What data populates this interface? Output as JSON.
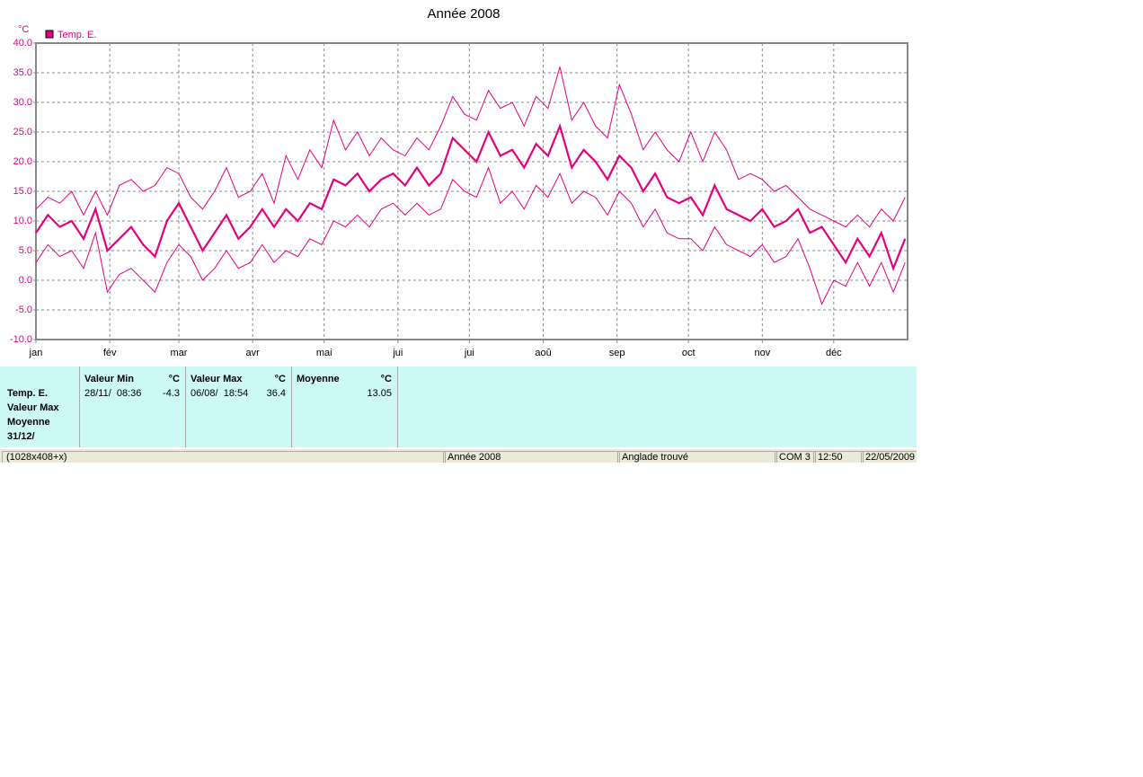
{
  "chart_data": {
    "type": "line",
    "title": "Année 2008",
    "y_label": "°C",
    "legend": "Temp. E.",
    "color": "#e6007e",
    "grid": true,
    "xlim": [
      0,
      366
    ],
    "xticks": [
      {
        "value": 0,
        "label": "jan"
      },
      {
        "value": 31,
        "label": "fév"
      },
      {
        "value": 60,
        "label": "mar"
      },
      {
        "value": 91,
        "label": "avr"
      },
      {
        "value": 121,
        "label": "mai"
      },
      {
        "value": 152,
        "label": "jui"
      },
      {
        "value": 182,
        "label": "jui"
      },
      {
        "value": 213,
        "label": "aoû"
      },
      {
        "value": 244,
        "label": "sep"
      },
      {
        "value": 274,
        "label": "oct"
      },
      {
        "value": 305,
        "label": "nov"
      },
      {
        "value": 335,
        "label": "déc"
      }
    ],
    "ylim": [
      -10,
      40
    ],
    "yticks": [
      {
        "value": -10,
        "label": "-10.0"
      },
      {
        "value": -5,
        "label": "-5.0"
      },
      {
        "value": 0,
        "label": "0.0"
      },
      {
        "value": 5,
        "label": "5.0"
      },
      {
        "value": 10,
        "label": "10.0"
      },
      {
        "value": 15,
        "label": "15.0"
      },
      {
        "value": 20,
        "label": "20.0"
      },
      {
        "value": 25,
        "label": "25.0"
      },
      {
        "value": 30,
        "label": "30.0"
      },
      {
        "value": 35,
        "label": "35.0"
      },
      {
        "value": 40,
        "label": "40.0"
      }
    ],
    "x": [
      0,
      5,
      10,
      15,
      20,
      25,
      30,
      35,
      40,
      45,
      50,
      55,
      60,
      65,
      70,
      75,
      80,
      85,
      90,
      95,
      100,
      105,
      110,
      115,
      120,
      125,
      130,
      135,
      140,
      145,
      150,
      155,
      160,
      165,
      170,
      175,
      180,
      185,
      190,
      195,
      200,
      205,
      210,
      215,
      220,
      225,
      230,
      235,
      240,
      245,
      250,
      255,
      260,
      265,
      270,
      275,
      280,
      285,
      290,
      295,
      300,
      305,
      310,
      315,
      320,
      325,
      330,
      335,
      340,
      345,
      350,
      355,
      360,
      365
    ],
    "series": [
      {
        "color": "#e6007e",
        "values": [
          12,
          14,
          13,
          15,
          11,
          15,
          11,
          16,
          17,
          15,
          16,
          19,
          18,
          14,
          12,
          15,
          19,
          14,
          15,
          18,
          13,
          21,
          17,
          22,
          19,
          27,
          22,
          25,
          21,
          24,
          22,
          21,
          24,
          22,
          26,
          31,
          28,
          27,
          32,
          29,
          30,
          26,
          31,
          29,
          36,
          27,
          30,
          26,
          24,
          33,
          28,
          22,
          25,
          22,
          20,
          25,
          20,
          25,
          22,
          17,
          18,
          17,
          15,
          16,
          14,
          12,
          11,
          10,
          9,
          11,
          9,
          12,
          10,
          14
        ]
      },
      {
        "color": "#e6007e",
        "values": [
          3,
          6,
          4,
          5,
          2,
          8,
          -2,
          1,
          2,
          0,
          -2,
          3,
          6,
          4,
          0,
          2,
          5,
          2,
          3,
          6,
          3,
          5,
          4,
          7,
          6,
          10,
          9,
          11,
          9,
          12,
          13,
          11,
          13,
          11,
          12,
          17,
          15,
          14,
          19,
          13,
          15,
          12,
          16,
          14,
          18,
          13,
          15,
          14,
          11,
          15,
          13,
          9,
          12,
          8,
          7,
          7,
          5,
          9,
          6,
          5,
          4,
          6,
          3,
          4,
          7,
          2,
          -4,
          0,
          -1,
          3,
          -1,
          3,
          -2,
          3
        ]
      },
      {
        "color": "#e6007e",
        "values": [
          8,
          11,
          9,
          10,
          7,
          12,
          5,
          7,
          9,
          6,
          4,
          10,
          13,
          9,
          5,
          8,
          11,
          7,
          9,
          12,
          9,
          12,
          10,
          13,
          12,
          17,
          16,
          18,
          15,
          17,
          18,
          16,
          19,
          16,
          18,
          24,
          22,
          20,
          25,
          21,
          22,
          19,
          23,
          21,
          26,
          19,
          22,
          20,
          17,
          21,
          19,
          15,
          18,
          14,
          13,
          14,
          11,
          16,
          12,
          11,
          10,
          12,
          9,
          10,
          12,
          8,
          9,
          6,
          3,
          7,
          4,
          8,
          2,
          7
        ]
      }
    ]
  },
  "stats": {
    "labels": [
      "Temp. E.",
      "Valeur Max",
      "Moyenne",
      "31/12/"
    ],
    "panels": [
      {
        "title": "Valeur Min",
        "unit": "°C",
        "date": "28/11/  08:36",
        "value": "-4.3"
      },
      {
        "title": "Valeur Max",
        "unit": "°C",
        "date": "06/08/  18:54",
        "value": "36.4"
      },
      {
        "title": "Moyenne",
        "unit": "°C",
        "date": "",
        "value": "13.05"
      }
    ]
  },
  "status": [
    "(1028x408+x)",
    "Année 2008",
    "Anglade trouvé",
    "COM 3",
    "12:50",
    "22/05/2009"
  ]
}
